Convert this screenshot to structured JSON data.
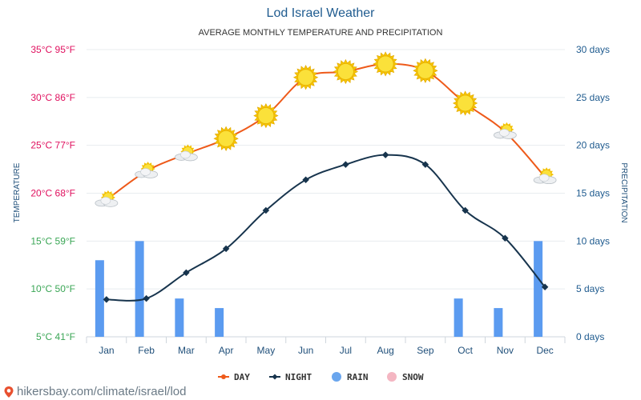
{
  "header": {
    "title": "Lod Israel Weather",
    "subtitle": "AVERAGE MONTHLY TEMPERATURE AND PRECIPITATION"
  },
  "footer": {
    "text": "hikersbay.com/climate/israel/lod"
  },
  "chart_data": {
    "type": "line",
    "categories": [
      "Jan",
      "Feb",
      "Mar",
      "Apr",
      "May",
      "Jun",
      "Jul",
      "Aug",
      "Sep",
      "Oct",
      "Nov",
      "Dec"
    ],
    "y_left": {
      "label": "TEMPERATURE",
      "range_c": [
        5,
        35
      ],
      "ticks": [
        "5°C 41°F",
        "10°C 50°F",
        "15°C 59°F",
        "20°C 68°F",
        "25°C 77°F",
        "30°C 86°F",
        "35°C 95°F"
      ],
      "tick_colors": [
        "#3aa655",
        "#3aa655",
        "#3aa655",
        "#e0115f",
        "#e0115f",
        "#e0115f",
        "#e0115f"
      ]
    },
    "y_right": {
      "label": "PRECIPITATION",
      "range_days": [
        0,
        30
      ],
      "ticks": [
        "0 days",
        "5 days",
        "10 days",
        "15 days",
        "20 days",
        "25 days",
        "30 days"
      ]
    },
    "series": [
      {
        "name": "DAY",
        "color": "#ee5a1a",
        "values": [
          19.3,
          22.3,
          24.1,
          25.7,
          28.1,
          32.1,
          32.7,
          33.5,
          32.8,
          29.4,
          26.4,
          21.7
        ]
      },
      {
        "name": "NIGHT",
        "color": "#17344d",
        "values": [
          8.9,
          9.0,
          11.7,
          14.2,
          18.2,
          21.4,
          23.0,
          24.0,
          23.0,
          18.2,
          15.3,
          10.2
        ]
      }
    ],
    "rain_days": [
      8,
      10,
      4,
      3,
      0,
      0,
      0,
      0,
      0,
      4,
      3,
      10
    ],
    "rain_color": "#5b9bf0",
    "day_icons": [
      "partly-cloudy",
      "partly-cloudy",
      "partly-cloudy",
      "sun",
      "sun",
      "sun",
      "sun",
      "sun",
      "sun",
      "sun",
      "partly-cloudy",
      "partly-cloudy"
    ],
    "legend": {
      "position": "bottom-center",
      "items": [
        {
          "label": "DAY",
          "color": "#ee5a1a",
          "marker": "line-dot"
        },
        {
          "label": "NIGHT",
          "color": "#17344d",
          "marker": "line-diamond"
        },
        {
          "label": "RAIN",
          "color": "#6aa6ee",
          "marker": "circle"
        },
        {
          "label": "SNOW",
          "color": "#f4b6c2",
          "marker": "circle"
        }
      ]
    }
  }
}
